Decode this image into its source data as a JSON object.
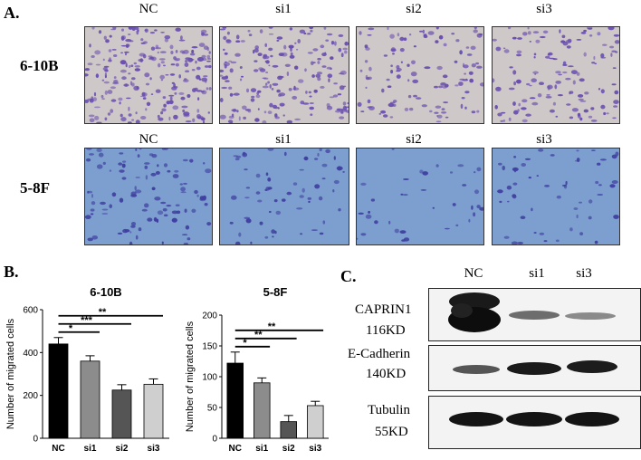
{
  "panel_a": {
    "label": "A.",
    "row1_cols": [
      "NC",
      "si1",
      "si2",
      "si3"
    ],
    "row2_cols": [
      "NC",
      "si1",
      "si2",
      "si3"
    ],
    "rows": [
      "6-10B",
      "5-8F"
    ],
    "colors": {
      "row1_bg": "#cfc8c8",
      "row1_cell": "#6a4fb0",
      "row2_bg": "#7d9fcf",
      "row2_cell": "#3f3fa0"
    },
    "densities": [
      [
        0.9,
        0.75,
        0.45,
        0.5
      ],
      [
        0.55,
        0.35,
        0.2,
        0.3
      ]
    ]
  },
  "panel_b": {
    "label": "B."
  },
  "panel_c": {
    "label": "C.",
    "lanes": [
      "NC",
      "si1",
      "si3"
    ],
    "blots": [
      {
        "name": "CAPRIN1",
        "kd": "116KD"
      },
      {
        "name": "E-Cadherin",
        "kd": "140KD"
      },
      {
        "name": "Tubulin",
        "kd": "55KD"
      }
    ]
  },
  "chart_data": [
    {
      "type": "bar",
      "title": "6-10B",
      "categories": [
        "NC",
        "si1",
        "si2",
        "si3"
      ],
      "values": [
        440,
        360,
        225,
        252
      ],
      "errors": [
        30,
        25,
        25,
        25
      ],
      "ylabel": "Number of migrated cells",
      "ylim": [
        0,
        600
      ],
      "yticks": [
        0,
        200,
        400,
        600
      ],
      "colors": [
        "#000000",
        "#8c8c8c",
        "#555555",
        "#cfcfcf"
      ],
      "significance": [
        {
          "from": "NC",
          "to": "si1",
          "label": "*"
        },
        {
          "from": "NC",
          "to": "si2",
          "label": "***"
        },
        {
          "from": "NC",
          "to": "si3",
          "label": "**"
        }
      ]
    },
    {
      "type": "bar",
      "title": "5-8F",
      "categories": [
        "NC",
        "si1",
        "si2",
        "si3"
      ],
      "values": [
        122,
        90,
        27,
        53
      ],
      "errors": [
        18,
        8,
        10,
        7
      ],
      "ylabel": "Number of migrated cells",
      "ylim": [
        0,
        200
      ],
      "yticks": [
        0,
        50,
        100,
        150,
        200
      ],
      "colors": [
        "#000000",
        "#8c8c8c",
        "#555555",
        "#cfcfcf"
      ],
      "significance": [
        {
          "from": "NC",
          "to": "si1",
          "label": "*"
        },
        {
          "from": "NC",
          "to": "si2",
          "label": "**"
        },
        {
          "from": "NC",
          "to": "si3",
          "label": "**"
        }
      ]
    }
  ]
}
